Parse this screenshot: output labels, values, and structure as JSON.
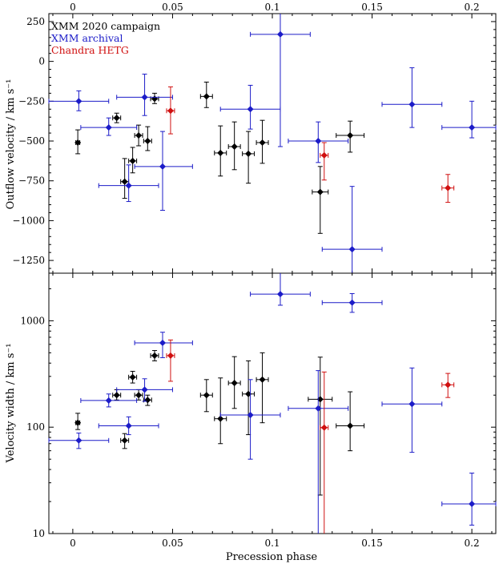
{
  "chart_data": [
    {
      "type": "scatter",
      "panel": "top",
      "ylabel": "Outflow velocity / km s⁻¹",
      "xlim": [
        -0.012,
        0.212
      ],
      "ylim": [
        -1330,
        300
      ],
      "y_scale": "linear",
      "x_ticks_top": [
        {
          "v": 0,
          "label": "0"
        },
        {
          "v": 0.05,
          "label": "0.05"
        },
        {
          "v": 0.1,
          "label": "0.1"
        },
        {
          "v": 0.15,
          "label": "0.15"
        },
        {
          "v": 0.2,
          "label": "0.2"
        }
      ],
      "y_ticks": [
        {
          "v": 250,
          "label": "250"
        },
        {
          "v": 0,
          "label": "0"
        },
        {
          "v": -250,
          "label": "−250"
        },
        {
          "v": -500,
          "label": "−500"
        },
        {
          "v": -750,
          "label": "−750"
        },
        {
          "v": -1000,
          "label": "−1000"
        },
        {
          "v": -1250,
          "label": "−1250"
        }
      ],
      "legend": [
        {
          "label": "XMM 2020 campaign",
          "color": "#000000"
        },
        {
          "label": "XMM archival",
          "color": "#1c1cc8"
        },
        {
          "label": "Chandra HETG",
          "color": "#d01010"
        }
      ],
      "series": [
        {
          "key": "xmm2020",
          "color": "#000000",
          "points": [
            {
              "x": 0.0025,
              "xlo": 0.0015,
              "xhi": 0.0035,
              "y": -510,
              "ylo": -580,
              "yhi": -430
            },
            {
              "x": 0.022,
              "xlo": 0.02,
              "xhi": 0.024,
              "y": -355,
              "ylo": -385,
              "yhi": -325
            },
            {
              "x": 0.026,
              "xlo": 0.024,
              "xhi": 0.028,
              "y": -755,
              "ylo": -860,
              "yhi": -610
            },
            {
              "x": 0.03,
              "xlo": 0.028,
              "xhi": 0.032,
              "y": -625,
              "ylo": -700,
              "yhi": -540
            },
            {
              "x": 0.033,
              "xlo": 0.031,
              "xhi": 0.035,
              "y": -465,
              "ylo": -530,
              "yhi": -400
            },
            {
              "x": 0.0375,
              "xlo": 0.0355,
              "xhi": 0.0395,
              "y": -500,
              "ylo": -560,
              "yhi": -410
            },
            {
              "x": 0.041,
              "xlo": 0.039,
              "xhi": 0.043,
              "y": -235,
              "ylo": -265,
              "yhi": -200
            },
            {
              "x": 0.067,
              "xlo": 0.064,
              "xhi": 0.07,
              "y": -220,
              "ylo": -290,
              "yhi": -130
            },
            {
              "x": 0.074,
              "xlo": 0.071,
              "xhi": 0.077,
              "y": -575,
              "ylo": -720,
              "yhi": -405
            },
            {
              "x": 0.081,
              "xlo": 0.078,
              "xhi": 0.084,
              "y": -535,
              "ylo": -680,
              "yhi": -380
            },
            {
              "x": 0.088,
              "xlo": 0.085,
              "xhi": 0.091,
              "y": -580,
              "ylo": -765,
              "yhi": -440
            },
            {
              "x": 0.095,
              "xlo": 0.092,
              "xhi": 0.098,
              "y": -510,
              "ylo": -640,
              "yhi": -370
            },
            {
              "x": 0.124,
              "xlo": 0.12,
              "xhi": 0.128,
              "y": -820,
              "ylo": -1080,
              "yhi": -660
            },
            {
              "x": 0.139,
              "xlo": 0.132,
              "xhi": 0.146,
              "y": -465,
              "ylo": -570,
              "yhi": -375
            }
          ]
        },
        {
          "key": "xmm_archival",
          "color": "#1c1cc8",
          "points": [
            {
              "x": 0.003,
              "xlo": -0.012,
              "xhi": 0.018,
              "y": -250,
              "ylo": -310,
              "yhi": -185
            },
            {
              "x": 0.018,
              "xlo": 0.004,
              "xhi": 0.032,
              "y": -415,
              "ylo": -465,
              "yhi": -355
            },
            {
              "x": 0.028,
              "xlo": 0.013,
              "xhi": 0.043,
              "y": -780,
              "ylo": -880,
              "yhi": -650
            },
            {
              "x": 0.036,
              "xlo": 0.022,
              "xhi": 0.05,
              "y": -225,
              "ylo": -340,
              "yhi": -80
            },
            {
              "x": 0.045,
              "xlo": 0.031,
              "xhi": 0.06,
              "y": -660,
              "ylo": -935,
              "yhi": -440
            },
            {
              "x": 0.089,
              "xlo": 0.074,
              "xhi": 0.104,
              "y": -300,
              "ylo": -425,
              "yhi": -150
            },
            {
              "x": 0.104,
              "xlo": 0.089,
              "xhi": 0.119,
              "y": 170,
              "ylo": -535,
              "yhi": 300
            },
            {
              "x": 0.123,
              "xlo": 0.108,
              "xhi": 0.138,
              "y": -500,
              "ylo": -635,
              "yhi": -380
            },
            {
              "x": 0.14,
              "xlo": 0.125,
              "xhi": 0.155,
              "y": -1180,
              "ylo": -1330,
              "yhi": -785
            },
            {
              "x": 0.17,
              "xlo": 0.155,
              "xhi": 0.185,
              "y": -270,
              "ylo": -415,
              "yhi": -40
            },
            {
              "x": 0.2,
              "xlo": 0.185,
              "xhi": 0.212,
              "y": -415,
              "ylo": -480,
              "yhi": -250
            }
          ]
        },
        {
          "key": "chandra",
          "color": "#d01010",
          "points": [
            {
              "x": 0.049,
              "xlo": 0.047,
              "xhi": 0.051,
              "y": -310,
              "ylo": -455,
              "yhi": -160
            },
            {
              "x": 0.126,
              "xlo": 0.124,
              "xhi": 0.128,
              "y": -590,
              "ylo": -745,
              "yhi": -510
            },
            {
              "x": 0.188,
              "xlo": 0.185,
              "xhi": 0.191,
              "y": -795,
              "ylo": -885,
              "yhi": -710
            }
          ]
        }
      ]
    },
    {
      "type": "scatter",
      "panel": "bottom",
      "xlabel": "Precession phase",
      "ylabel": "Velocity width / km s⁻¹",
      "xlim": [
        -0.012,
        0.212
      ],
      "ylim": [
        10,
        2800
      ],
      "y_scale": "log",
      "x_ticks": [
        {
          "v": 0,
          "label": "0"
        },
        {
          "v": 0.05,
          "label": "0.05"
        },
        {
          "v": 0.1,
          "label": "0.1"
        },
        {
          "v": 0.15,
          "label": "0.15"
        },
        {
          "v": 0.2,
          "label": "0.2"
        }
      ],
      "y_ticks": [
        {
          "v": 10,
          "label": "10"
        },
        {
          "v": 100,
          "label": "100"
        },
        {
          "v": 1000,
          "label": "1000"
        }
      ],
      "series": [
        {
          "key": "xmm2020",
          "color": "#000000",
          "points": [
            {
              "x": 0.0025,
              "xlo": 0.0015,
              "xhi": 0.0035,
              "y": 110,
              "ylo": 95,
              "yhi": 135
            },
            {
              "x": 0.022,
              "xlo": 0.02,
              "xhi": 0.024,
              "y": 200,
              "ylo": 180,
              "yhi": 225
            },
            {
              "x": 0.026,
              "xlo": 0.024,
              "xhi": 0.028,
              "y": 75,
              "ylo": 63,
              "yhi": 87
            },
            {
              "x": 0.03,
              "xlo": 0.028,
              "xhi": 0.032,
              "y": 295,
              "ylo": 260,
              "yhi": 335
            },
            {
              "x": 0.033,
              "xlo": 0.031,
              "xhi": 0.035,
              "y": 200,
              "ylo": 180,
              "yhi": 225
            },
            {
              "x": 0.0375,
              "xlo": 0.0355,
              "xhi": 0.0395,
              "y": 180,
              "ylo": 160,
              "yhi": 200
            },
            {
              "x": 0.041,
              "xlo": 0.039,
              "xhi": 0.043,
              "y": 470,
              "ylo": 420,
              "yhi": 525
            },
            {
              "x": 0.067,
              "xlo": 0.064,
              "xhi": 0.07,
              "y": 200,
              "ylo": 140,
              "yhi": 280
            },
            {
              "x": 0.074,
              "xlo": 0.071,
              "xhi": 0.077,
              "y": 120,
              "ylo": 70,
              "yhi": 290
            },
            {
              "x": 0.081,
              "xlo": 0.078,
              "xhi": 0.084,
              "y": 260,
              "ylo": 150,
              "yhi": 460
            },
            {
              "x": 0.088,
              "xlo": 0.085,
              "xhi": 0.091,
              "y": 205,
              "ylo": 85,
              "yhi": 420
            },
            {
              "x": 0.095,
              "xlo": 0.092,
              "xhi": 0.098,
              "y": 280,
              "ylo": 110,
              "yhi": 500
            },
            {
              "x": 0.124,
              "xlo": 0.118,
              "xhi": 0.13,
              "y": 183,
              "ylo": 23,
              "yhi": 455
            },
            {
              "x": 0.139,
              "xlo": 0.132,
              "xhi": 0.146,
              "y": 103,
              "ylo": 60,
              "yhi": 215
            }
          ]
        },
        {
          "key": "xmm_archival",
          "color": "#1c1cc8",
          "points": [
            {
              "x": 0.003,
              "xlo": -0.012,
              "xhi": 0.018,
              "y": 75,
              "ylo": 63,
              "yhi": 88
            },
            {
              "x": 0.018,
              "xlo": 0.004,
              "xhi": 0.032,
              "y": 178,
              "ylo": 155,
              "yhi": 205
            },
            {
              "x": 0.028,
              "xlo": 0.013,
              "xhi": 0.043,
              "y": 103,
              "ylo": 85,
              "yhi": 125
            },
            {
              "x": 0.036,
              "xlo": 0.022,
              "xhi": 0.05,
              "y": 225,
              "ylo": 175,
              "yhi": 285
            },
            {
              "x": 0.045,
              "xlo": 0.031,
              "xhi": 0.06,
              "y": 620,
              "ylo": 450,
              "yhi": 780
            },
            {
              "x": 0.089,
              "xlo": 0.074,
              "xhi": 0.104,
              "y": 130,
              "ylo": 50,
              "yhi": 280
            },
            {
              "x": 0.104,
              "xlo": 0.089,
              "xhi": 0.119,
              "y": 1780,
              "ylo": 1400,
              "yhi": 2800
            },
            {
              "x": 0.123,
              "xlo": 0.108,
              "xhi": 0.138,
              "y": 150,
              "ylo": 10,
              "yhi": 340
            },
            {
              "x": 0.14,
              "xlo": 0.125,
              "xhi": 0.155,
              "y": 1480,
              "ylo": 1200,
              "yhi": 1800
            },
            {
              "x": 0.17,
              "xlo": 0.155,
              "xhi": 0.185,
              "y": 165,
              "ylo": 58,
              "yhi": 360
            },
            {
              "x": 0.2,
              "xlo": 0.185,
              "xhi": 0.212,
              "y": 19,
              "ylo": 12,
              "yhi": 37
            }
          ]
        },
        {
          "key": "chandra",
          "color": "#d01010",
          "points": [
            {
              "x": 0.049,
              "xlo": 0.047,
              "xhi": 0.051,
              "y": 470,
              "ylo": 270,
              "yhi": 660
            },
            {
              "x": 0.126,
              "xlo": 0.124,
              "xhi": 0.128,
              "y": 99,
              "ylo": 10,
              "yhi": 330
            },
            {
              "x": 0.188,
              "xlo": 0.185,
              "xhi": 0.191,
              "y": 250,
              "ylo": 190,
              "yhi": 320
            }
          ]
        }
      ]
    }
  ]
}
